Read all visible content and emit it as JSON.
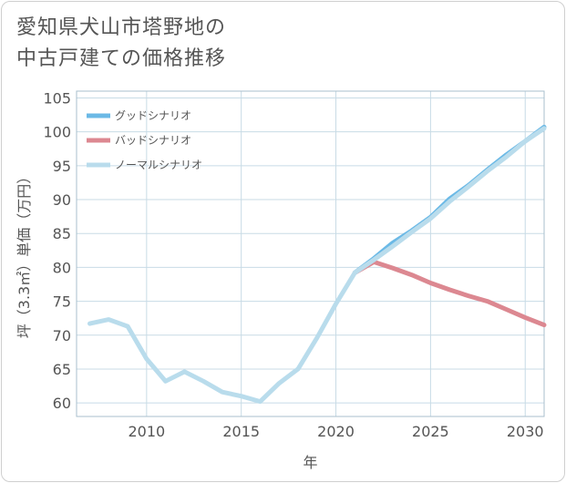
{
  "title": {
    "line1": "愛知県犬山市塔野地の",
    "line2": "中古戸建ての価格推移"
  },
  "colors": {
    "good": "#6bb9e6",
    "bad": "#dc8891",
    "normal": "#b9dcec",
    "grid": "#c8dbe6",
    "frame": "#a9bfcc"
  },
  "chart_data": {
    "type": "line",
    "title": "愛知県犬山市塔野地の中古戸建ての価格推移",
    "xlabel": "年",
    "ylabel": "坪（3.3㎡）単価（万円）",
    "xlim": [
      2006.3,
      2031
    ],
    "ylim": [
      58,
      106
    ],
    "x_ticks": [
      2010,
      2015,
      2020,
      2025,
      2030
    ],
    "y_ticks": [
      60,
      65,
      70,
      75,
      80,
      85,
      90,
      95,
      100,
      105
    ],
    "grid": true,
    "legend_position": "top-left",
    "series": [
      {
        "name": "グッドシナリオ",
        "key": "good",
        "x": [
          2021,
          2022,
          2023,
          2024,
          2025,
          2026,
          2027,
          2028,
          2029,
          2030,
          2031
        ],
        "values": [
          79.2,
          81.3,
          83.6,
          85.4,
          87.4,
          90.1,
          92.1,
          94.4,
          96.6,
          98.6,
          100.7
        ]
      },
      {
        "name": "バッドシナリオ",
        "key": "bad",
        "x": [
          2021,
          2022,
          2023,
          2024,
          2025,
          2026,
          2027,
          2028,
          2029,
          2030,
          2031
        ],
        "values": [
          79.2,
          80.8,
          79.9,
          78.9,
          77.7,
          76.7,
          75.8,
          75.0,
          73.8,
          72.6,
          71.5
        ]
      },
      {
        "name": "ノーマルシナリオ",
        "key": "normal",
        "x": [
          2007,
          2008,
          2009,
          2010,
          2011,
          2012,
          2013,
          2014,
          2015,
          2016,
          2017,
          2018,
          2019,
          2020,
          2021,
          2022,
          2023,
          2024,
          2025,
          2026,
          2027,
          2028,
          2029,
          2030,
          2031
        ],
        "values": [
          71.7,
          72.3,
          71.3,
          66.5,
          63.2,
          64.6,
          63.2,
          61.6,
          61.0,
          60.2,
          62.9,
          65.0,
          69.6,
          74.6,
          79.2,
          81.1,
          83.1,
          85.2,
          87.2,
          89.7,
          91.9,
          94.2,
          96.3,
          98.6,
          100.5
        ]
      }
    ]
  }
}
